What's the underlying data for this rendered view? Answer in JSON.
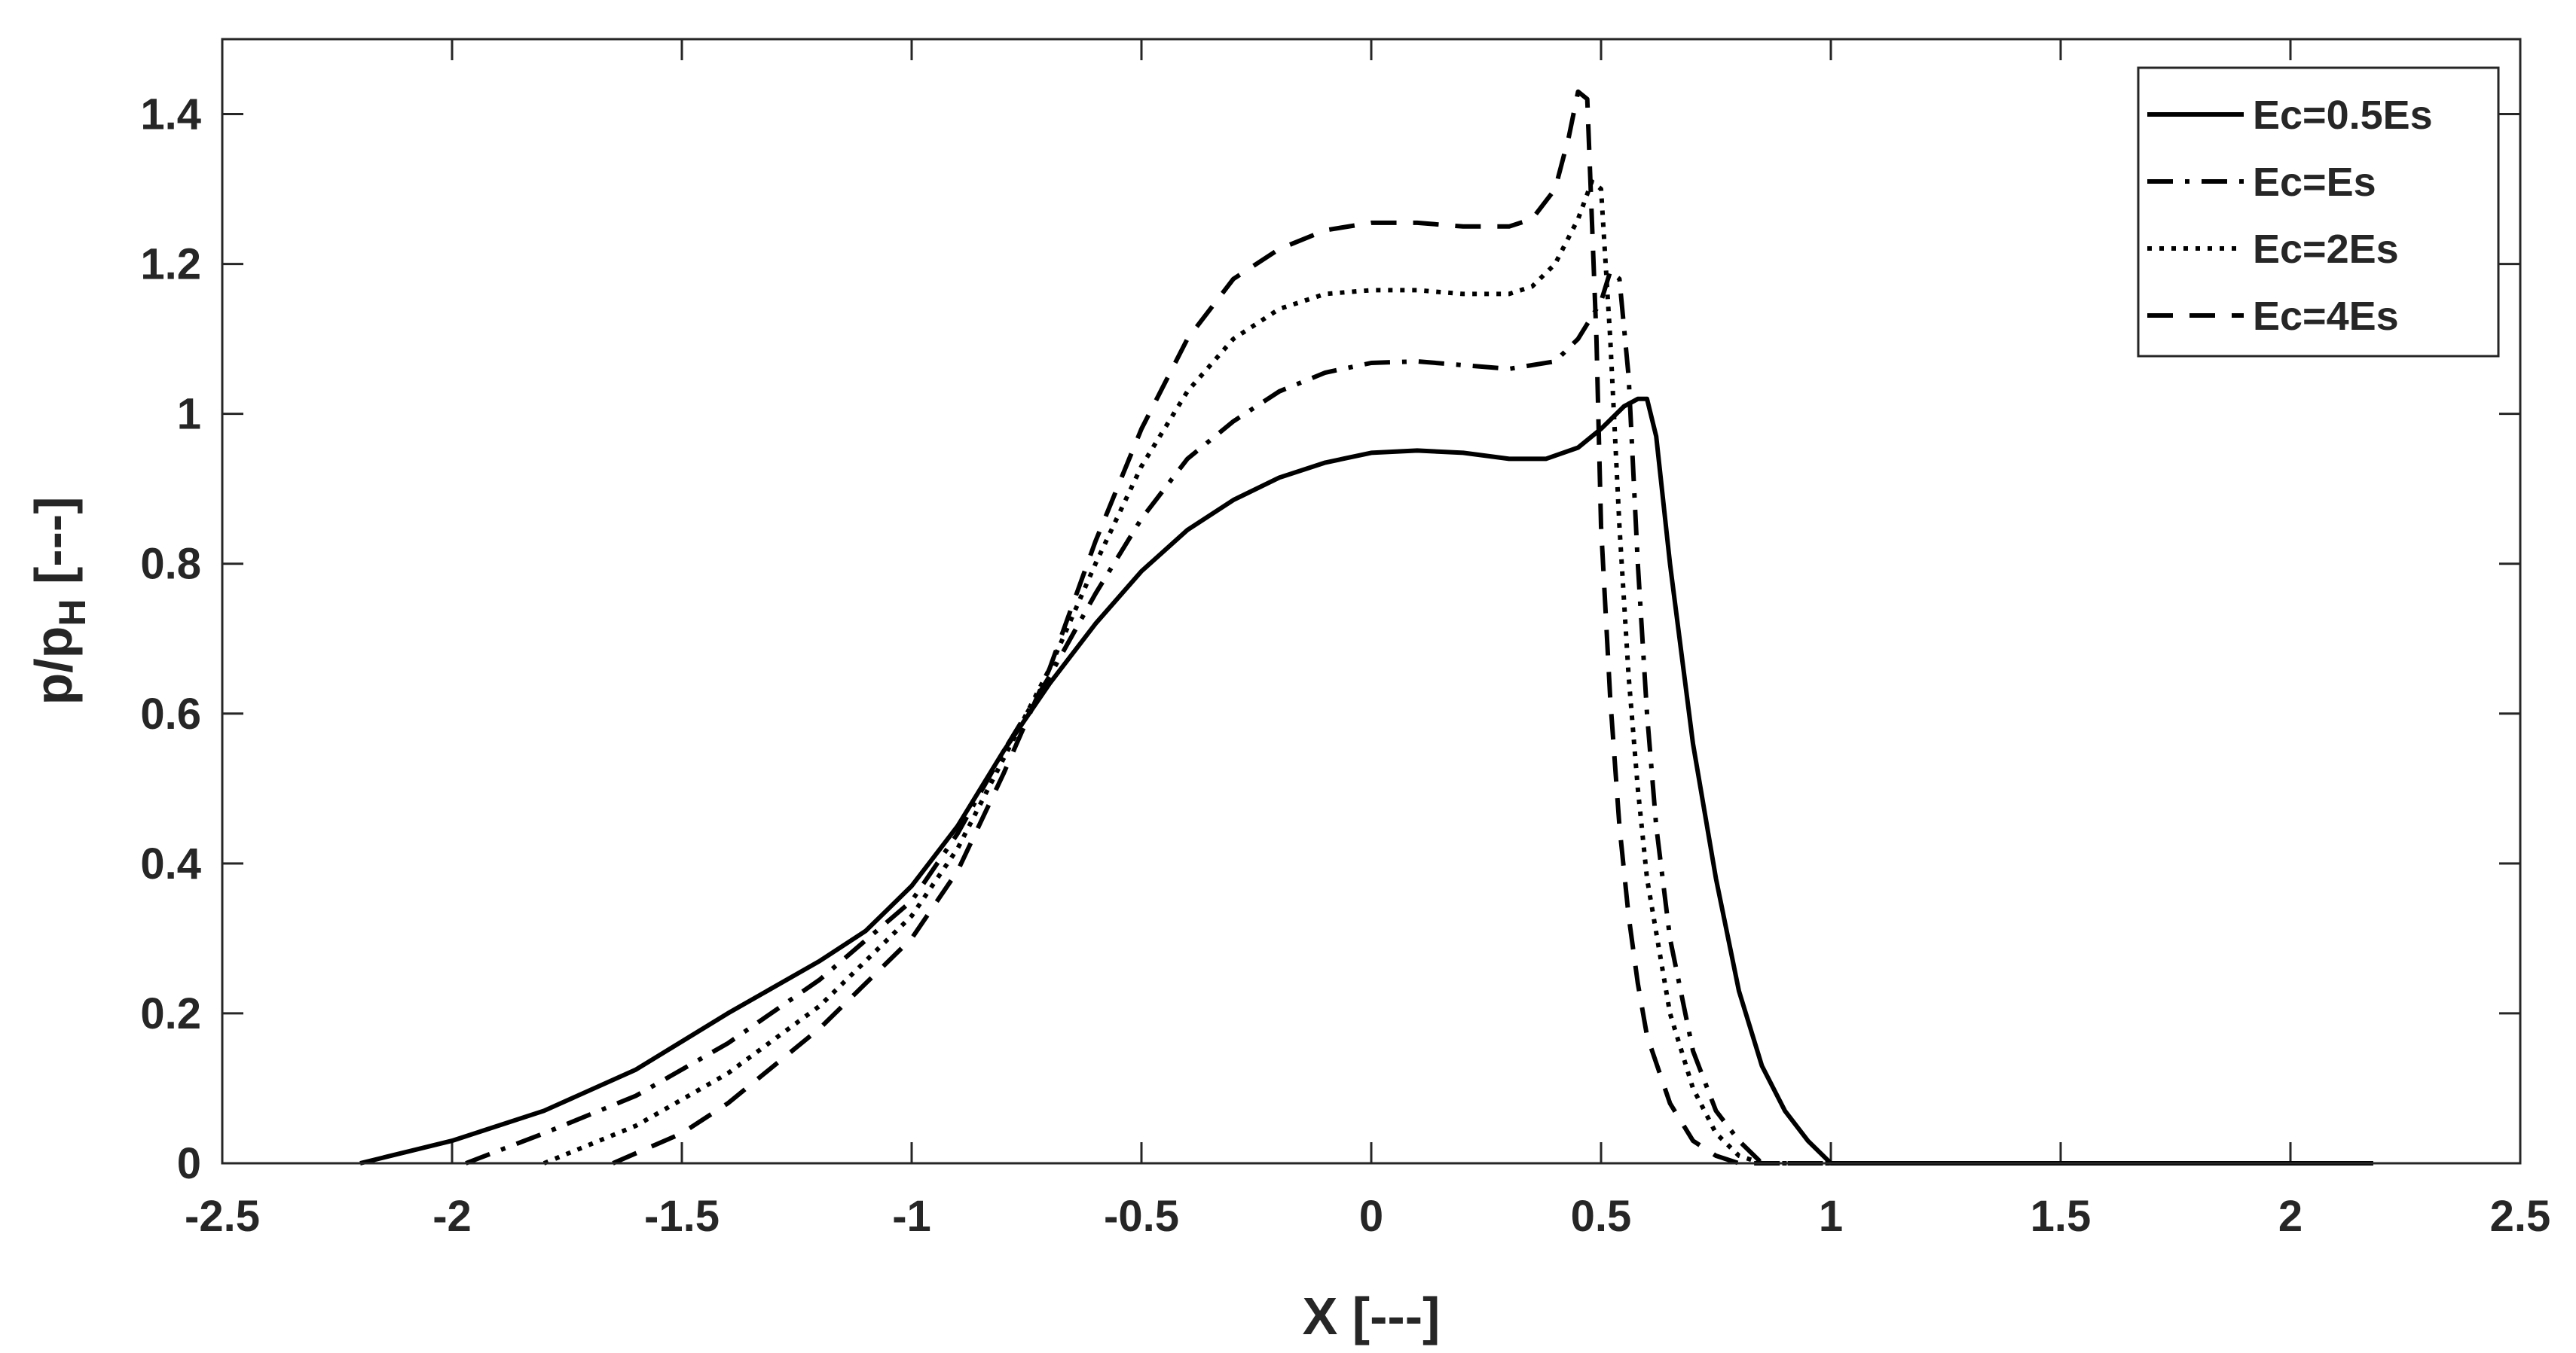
{
  "chart_data": {
    "type": "line",
    "title": "",
    "xlabel": "X [---]",
    "ylabel_main": "p/p",
    "ylabel_sub": "H",
    "ylabel_suffix": " [---]",
    "xlim": [
      -2.5,
      2.5
    ],
    "ylim": [
      0,
      1.5
    ],
    "xticks": [
      -2.5,
      -2,
      -1.5,
      -1,
      -0.5,
      0,
      0.5,
      1,
      1.5,
      2,
      2.5
    ],
    "xtick_labels": [
      "-2.5",
      "-2",
      "-1.5",
      "-1",
      "-0.5",
      "0",
      "0.5",
      "1",
      "1.5",
      "2",
      "2.5"
    ],
    "yticks": [
      0,
      0.2,
      0.4,
      0.6,
      0.8,
      1,
      1.2,
      1.4
    ],
    "ytick_labels": [
      "0",
      "0.2",
      "0.4",
      "0.6",
      "0.8",
      "1",
      "1.2",
      "1.4"
    ],
    "grid": false,
    "legend_position": "top-right",
    "line_color": "#000000",
    "series": [
      {
        "name": "Ec=0.5Es",
        "dash": "solid",
        "x": [
          -2.2,
          -2.0,
          -1.8,
          -1.6,
          -1.4,
          -1.2,
          -1.1,
          -1.05,
          -1.0,
          -0.9,
          -0.8,
          -0.7,
          -0.6,
          -0.5,
          -0.4,
          -0.3,
          -0.2,
          -0.1,
          0.0,
          0.1,
          0.2,
          0.3,
          0.38,
          0.45,
          0.5,
          0.55,
          0.58,
          0.6,
          0.62,
          0.65,
          0.7,
          0.75,
          0.8,
          0.85,
          0.9,
          0.95,
          1.0,
          1.5,
          2.0,
          2.18
        ],
        "y": [
          0.0,
          0.03,
          0.07,
          0.125,
          0.2,
          0.27,
          0.31,
          0.34,
          0.37,
          0.45,
          0.55,
          0.64,
          0.72,
          0.79,
          0.845,
          0.885,
          0.915,
          0.935,
          0.948,
          0.951,
          0.948,
          0.94,
          0.94,
          0.955,
          0.98,
          1.01,
          1.02,
          1.02,
          0.97,
          0.8,
          0.56,
          0.38,
          0.23,
          0.13,
          0.07,
          0.03,
          0.0,
          0.0,
          0.0,
          0.0
        ]
      },
      {
        "name": "Ec=Es",
        "dash": "dashdot",
        "x": [
          -1.97,
          -1.8,
          -1.6,
          -1.4,
          -1.2,
          -1.0,
          -0.9,
          -0.8,
          -0.7,
          -0.6,
          -0.5,
          -0.4,
          -0.3,
          -0.2,
          -0.1,
          0.0,
          0.1,
          0.2,
          0.3,
          0.4,
          0.45,
          0.5,
          0.52,
          0.54,
          0.56,
          0.58,
          0.6,
          0.62,
          0.65,
          0.7,
          0.75,
          0.8,
          0.85,
          0.9,
          0.95,
          1.0,
          1.5,
          2.0,
          2.18
        ],
        "y": [
          0.0,
          0.04,
          0.09,
          0.16,
          0.245,
          0.35,
          0.44,
          0.55,
          0.65,
          0.76,
          0.86,
          0.94,
          0.99,
          1.03,
          1.055,
          1.068,
          1.07,
          1.065,
          1.06,
          1.07,
          1.1,
          1.15,
          1.19,
          1.18,
          1.05,
          0.8,
          0.6,
          0.45,
          0.3,
          0.15,
          0.07,
          0.03,
          0.0,
          0.0,
          0.0,
          0.0,
          0.0,
          0.0,
          0.0
        ]
      },
      {
        "name": "Ec=2Es",
        "dash": "dotted",
        "x": [
          -1.8,
          -1.6,
          -1.4,
          -1.2,
          -1.0,
          -0.9,
          -0.8,
          -0.7,
          -0.6,
          -0.5,
          -0.4,
          -0.3,
          -0.2,
          -0.1,
          0.0,
          0.1,
          0.2,
          0.3,
          0.35,
          0.4,
          0.45,
          0.48,
          0.5,
          0.52,
          0.54,
          0.56,
          0.58,
          0.6,
          0.65,
          0.7,
          0.75,
          0.8,
          0.85,
          0.87,
          1.0,
          1.5,
          2.0,
          2.18
        ],
        "y": [
          0.0,
          0.05,
          0.12,
          0.21,
          0.33,
          0.42,
          0.54,
          0.66,
          0.8,
          0.93,
          1.03,
          1.1,
          1.14,
          1.16,
          1.165,
          1.165,
          1.16,
          1.16,
          1.17,
          1.2,
          1.26,
          1.31,
          1.3,
          1.1,
          0.85,
          0.65,
          0.5,
          0.38,
          0.2,
          0.1,
          0.04,
          0.01,
          0.0,
          0.0,
          0.0,
          0.0,
          0.0,
          0.0
        ]
      },
      {
        "name": "Ec=4Es",
        "dash": "dashed",
        "x": [
          -1.65,
          -1.5,
          -1.4,
          -1.2,
          -1.0,
          -0.9,
          -0.8,
          -0.7,
          -0.6,
          -0.5,
          -0.4,
          -0.3,
          -0.2,
          -0.1,
          0.0,
          0.1,
          0.2,
          0.3,
          0.35,
          0.4,
          0.43,
          0.45,
          0.47,
          0.49,
          0.5,
          0.52,
          0.54,
          0.56,
          0.58,
          0.6,
          0.65,
          0.7,
          0.75,
          0.8,
          1.0,
          1.5,
          2.0,
          2.18
        ],
        "y": [
          0.0,
          0.04,
          0.08,
          0.18,
          0.3,
          0.39,
          0.52,
          0.66,
          0.83,
          0.98,
          1.1,
          1.18,
          1.22,
          1.245,
          1.255,
          1.255,
          1.25,
          1.25,
          1.26,
          1.3,
          1.37,
          1.43,
          1.42,
          1.1,
          0.85,
          0.62,
          0.45,
          0.33,
          0.24,
          0.17,
          0.08,
          0.03,
          0.01,
          0.0,
          0.0,
          0.0,
          0.0,
          0.0
        ]
      }
    ]
  }
}
